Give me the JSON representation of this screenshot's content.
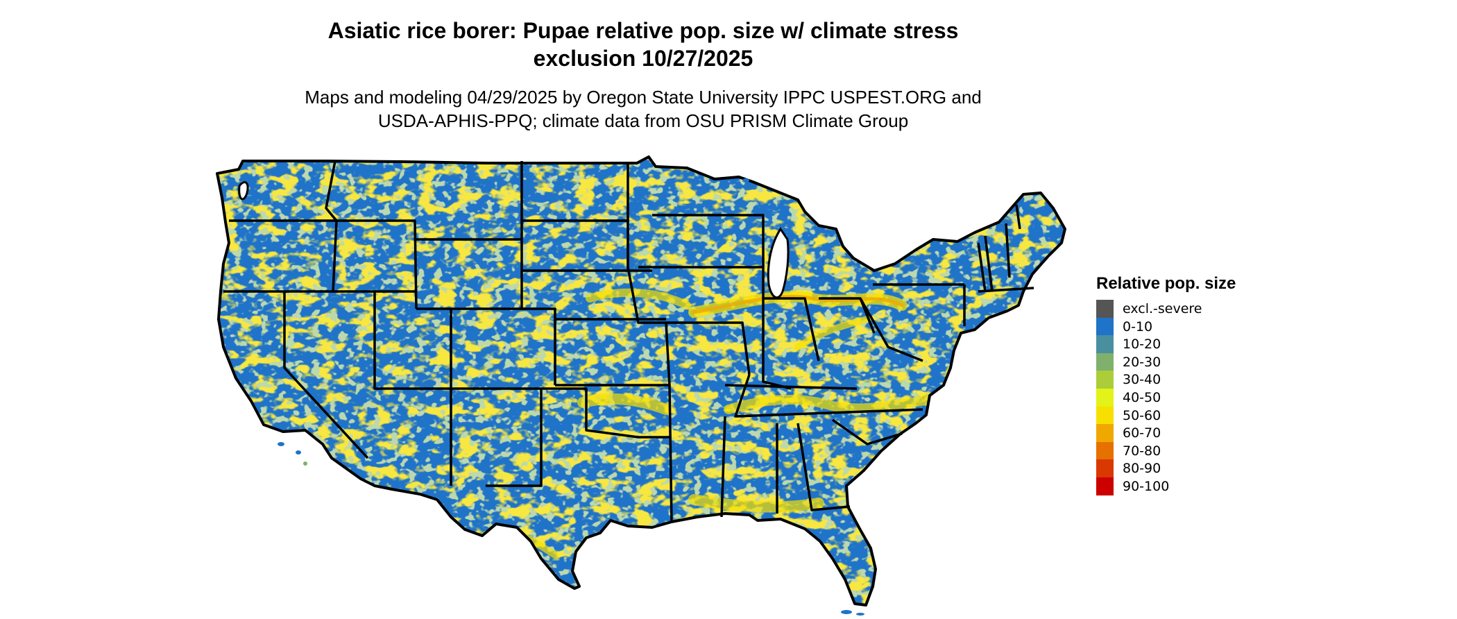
{
  "title_line1": "Asiatic rice borer: Pupae relative pop. size w/ climate stress",
  "title_line2": "exclusion 10/27/2025",
  "subtitle_line1": "Maps and modeling 04/29/2025 by Oregon State University IPPC USPEST.ORG and",
  "subtitle_line2": "USDA-APHIS-PPQ; climate data from OSU PRISM Climate Group",
  "map": {
    "region": "Contiguous United States",
    "dominant_class": "0-10",
    "colors": {
      "land": "#1f73c9",
      "border": "#000000",
      "water": "#ffffff"
    }
  },
  "legend": {
    "title": "Relative pop. size",
    "items": [
      {
        "label": "excl.-severe",
        "color": "#555555"
      },
      {
        "label": "0-10",
        "color": "#1f73c9"
      },
      {
        "label": "10-20",
        "color": "#4a8fa0"
      },
      {
        "label": "20-30",
        "color": "#7fb06c"
      },
      {
        "label": "30-40",
        "color": "#abcd3a"
      },
      {
        "label": "40-50",
        "color": "#e3f218"
      },
      {
        "label": "50-60",
        "color": "#f7e000"
      },
      {
        "label": "60-70",
        "color": "#f0a800"
      },
      {
        "label": "70-80",
        "color": "#e67000"
      },
      {
        "label": "80-90",
        "color": "#d93800"
      },
      {
        "label": "90-100",
        "color": "#cc0000"
      }
    ]
  }
}
